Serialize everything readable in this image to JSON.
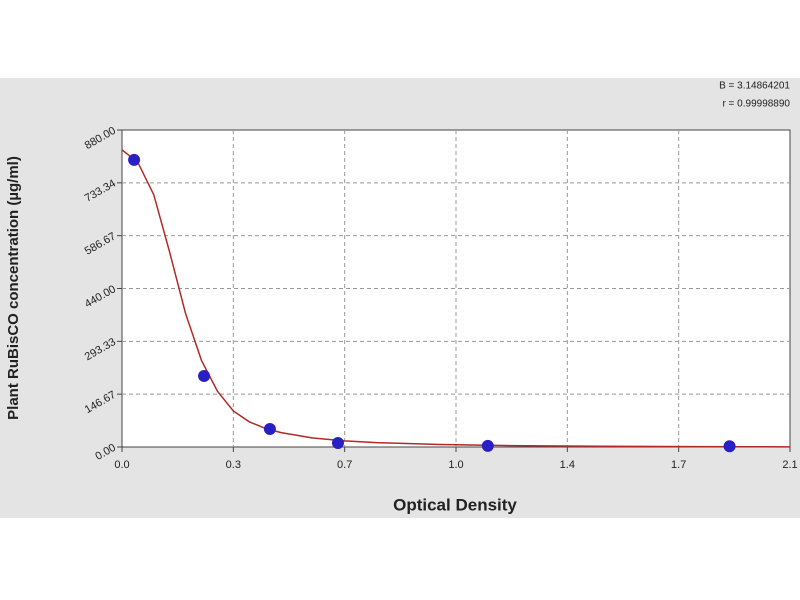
{
  "chart_data": {
    "type": "scatter",
    "xlabel": "Optical Density",
    "ylabel": "Plant RuBisCO concentration (µg/ml)",
    "annotations": [
      "B = 3.14864201",
      "r = 0.99998890"
    ],
    "xlim": [
      0,
      2.1
    ],
    "ylim": [
      0,
      880
    ],
    "xticks": [
      {
        "value": 0,
        "label": "0.0"
      },
      {
        "value": 0.35,
        "label": "0.3"
      },
      {
        "value": 0.7,
        "label": "0.7"
      },
      {
        "value": 1.05,
        "label": "1.0"
      },
      {
        "value": 1.4,
        "label": "1.4"
      },
      {
        "value": 1.75,
        "label": "1.7"
      },
      {
        "value": 2.1,
        "label": "2.1"
      }
    ],
    "yticks": [
      {
        "value": 0,
        "label": "0.00"
      },
      {
        "value": 146.67,
        "label": "146.67"
      },
      {
        "value": 293.33,
        "label": "293.33"
      },
      {
        "value": 440,
        "label": "440.00"
      },
      {
        "value": 586.67,
        "label": "586.67"
      },
      {
        "value": 733.34,
        "label": "733.34"
      },
      {
        "value": 880,
        "label": "880.00"
      }
    ],
    "grid": true,
    "points": {
      "color": "#2a1fc4",
      "x": [
        0.038,
        0.258,
        0.465,
        0.679,
        1.15,
        1.91
      ],
      "values": [
        797,
        197,
        50,
        11,
        3,
        2
      ]
    },
    "curve": {
      "color": "#b02a2a",
      "x": [
        0,
        0.05,
        0.1,
        0.15,
        0.2,
        0.25,
        0.3,
        0.35,
        0.4,
        0.45,
        0.5,
        0.6,
        0.7,
        0.8,
        1.0,
        1.2,
        1.5,
        1.8,
        2.1
      ],
      "values": [
        825,
        790,
        700,
        540,
        370,
        240,
        155,
        100,
        70,
        52,
        40,
        25,
        17,
        12,
        7,
        4,
        2,
        1,
        0.5
      ]
    }
  }
}
